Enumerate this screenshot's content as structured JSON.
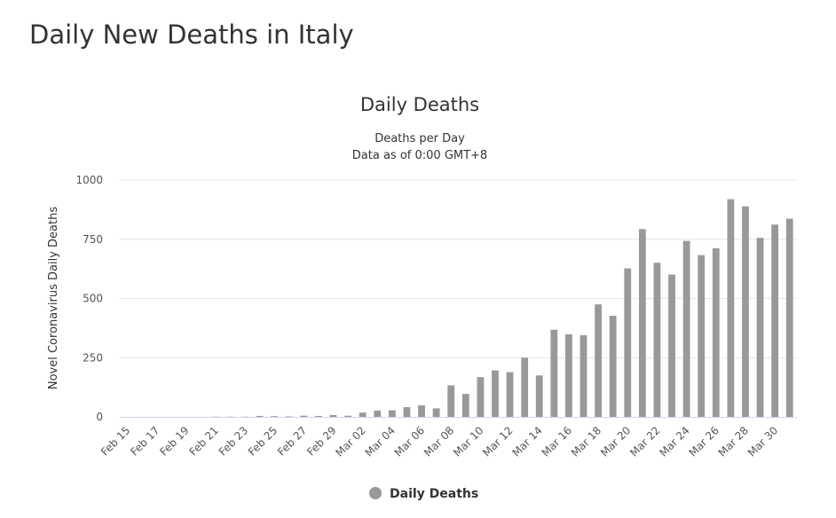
{
  "page_title": "Daily New Deaths in Italy",
  "chart_data": {
    "type": "bar",
    "title": "Daily Deaths",
    "subtitle_lines": [
      "Deaths per Day",
      "Data as of 0:00 GMT+8"
    ],
    "ylabel": "Novel Coronavirus Daily Deaths",
    "xlabel": "",
    "ylim": [
      0,
      1000
    ],
    "yticks": [
      0,
      250,
      500,
      750,
      1000
    ],
    "grid": true,
    "legend_position": "bottom-center",
    "bar_color": "#999999",
    "categories": [
      "Feb 15",
      "Feb 16",
      "Feb 17",
      "Feb 18",
      "Feb 19",
      "Feb 20",
      "Feb 21",
      "Feb 22",
      "Feb 23",
      "Feb 24",
      "Feb 25",
      "Feb 26",
      "Feb 27",
      "Feb 28",
      "Feb 29",
      "Mar 01",
      "Mar 02",
      "Mar 03",
      "Mar 04",
      "Mar 05",
      "Mar 06",
      "Mar 07",
      "Mar 08",
      "Mar 09",
      "Mar 10",
      "Mar 11",
      "Mar 12",
      "Mar 13",
      "Mar 14",
      "Mar 15",
      "Mar 16",
      "Mar 17",
      "Mar 18",
      "Mar 19",
      "Mar 20",
      "Mar 21",
      "Mar 22",
      "Mar 23",
      "Mar 24",
      "Mar 25",
      "Mar 26",
      "Mar 27",
      "Mar 28",
      "Mar 29",
      "Mar 30",
      "Mar 31"
    ],
    "xtick_labels": [
      "Feb 15",
      "Feb 17",
      "Feb 19",
      "Feb 21",
      "Feb 23",
      "Feb 25",
      "Feb 27",
      "Feb 29",
      "Mar 02",
      "Mar 04",
      "Mar 06",
      "Mar 08",
      "Mar 10",
      "Mar 12",
      "Mar 14",
      "Mar 16",
      "Mar 18",
      "Mar 20",
      "Mar 22",
      "Mar 24",
      "Mar 26",
      "Mar 28",
      "Mar 30"
    ],
    "series": [
      {
        "name": "Daily Deaths",
        "values": [
          0,
          0,
          0,
          0,
          0,
          0,
          1,
          1,
          1,
          4,
          3,
          2,
          5,
          4,
          8,
          5,
          18,
          27,
          28,
          41,
          49,
          36,
          133,
          97,
          168,
          196,
          189,
          250,
          175,
          368,
          349,
          345,
          475,
          427,
          627,
          793,
          651,
          601,
          743,
          683,
          712,
          919,
          889,
          756,
          812,
          837
        ]
      }
    ]
  }
}
